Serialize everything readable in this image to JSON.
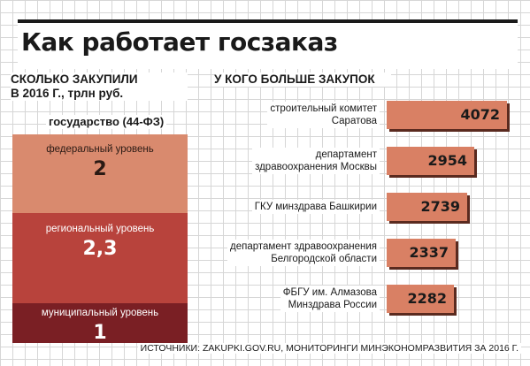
{
  "title": "Как работает госзаказ",
  "left_section": {
    "heading_line1": "СКОЛЬКО ЗАКУПИЛИ",
    "heading_line2": "В 2016 Г., трлн руб.",
    "group_label": "государство (44-ФЗ)"
  },
  "right_section": {
    "heading": "У КОГО БОЛЬШЕ ЗАКУПОК"
  },
  "source": "ИСТОЧНИКИ: ZAKUPKI.GOV.RU, МОНИТОРИНГИ МИНЭКОНОМРАЗВИТИЯ ЗА 2016 Г.",
  "colors": {
    "federal": "#d98a6e",
    "regional": "#b8433c",
    "municipal": "#7a1f24",
    "bar": "#d98064",
    "bar_shadow": "#5a2a1f"
  },
  "chart_data": [
    {
      "type": "bar",
      "stacked": true,
      "unit": "трлн руб.",
      "title": "СКОЛЬКО ЗАКУПИЛИ В 2016 Г., трлн руб.",
      "categories": [
        "федеральный уровень",
        "региональный уровень",
        "муниципальный уровень"
      ],
      "values": [
        2,
        2.3,
        1
      ],
      "value_labels": [
        "2",
        "2,3",
        "1"
      ]
    },
    {
      "type": "bar",
      "orientation": "horizontal",
      "title": "У КОГО БОЛЬШЕ ЗАКУПОК",
      "categories": [
        "строительный комитет Саратова",
        "департамент здравоохранения Москвы",
        "ГКУ минздрава Башкирии",
        "департамент здравоохранения Белгородской области",
        "ФБГУ им. Алмазова Минздрава России"
      ],
      "category_lines": [
        [
          "строительный комитет",
          "Саратова"
        ],
        [
          "департамент",
          "здравоохранения Москвы"
        ],
        [
          "ГКУ минздрава Башкирии"
        ],
        [
          "департамент здравоохранения",
          "Белгородской области"
        ],
        [
          "ФБГУ им. Алмазова",
          "Минздрава России"
        ]
      ],
      "values": [
        4072,
        2954,
        2739,
        2337,
        2282
      ]
    }
  ]
}
